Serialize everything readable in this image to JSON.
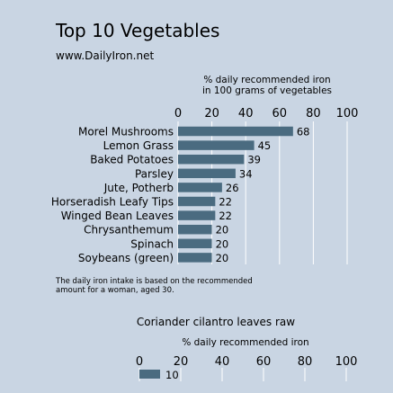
{
  "header": {
    "title": "Top 10 Vegetables",
    "subtitle": "www.DailyIron.net"
  },
  "footnote": "The daily iron intake is based on the recommended amount for a woman, aged 30.",
  "chart_data": [
    {
      "type": "bar",
      "orientation": "horizontal",
      "title": "",
      "xlabel": "% daily recommended iron in 100 grams of vegetables",
      "xlabel_lines": [
        "% daily recommended iron",
        "in 100 grams of vegetables"
      ],
      "xlim": [
        0,
        100
      ],
      "xticks": [
        0,
        20,
        40,
        60,
        80,
        100
      ],
      "grid": true,
      "bar_color": "#4a6b80",
      "categories": [
        "Morel Mushrooms",
        "Lemon Grass",
        "Baked Potatoes",
        "Parsley",
        "Jute, Potherb",
        "Horseradish Leafy Tips",
        "Winged Bean Leaves",
        "Chrysanthemum",
        "Spinach",
        "Soybeans (green)"
      ],
      "values": [
        68,
        45,
        39,
        34,
        26,
        22,
        22,
        20,
        20,
        20
      ]
    },
    {
      "type": "bar",
      "orientation": "horizontal",
      "title": "Coriander cilantro leaves raw",
      "xlabel": "% daily recommended iron",
      "xlim": [
        0,
        100
      ],
      "xticks": [
        0,
        20,
        40,
        60,
        80,
        100
      ],
      "grid": true,
      "bar_color": "#4a6b80",
      "categories": [
        ""
      ],
      "values": [
        10
      ]
    }
  ]
}
